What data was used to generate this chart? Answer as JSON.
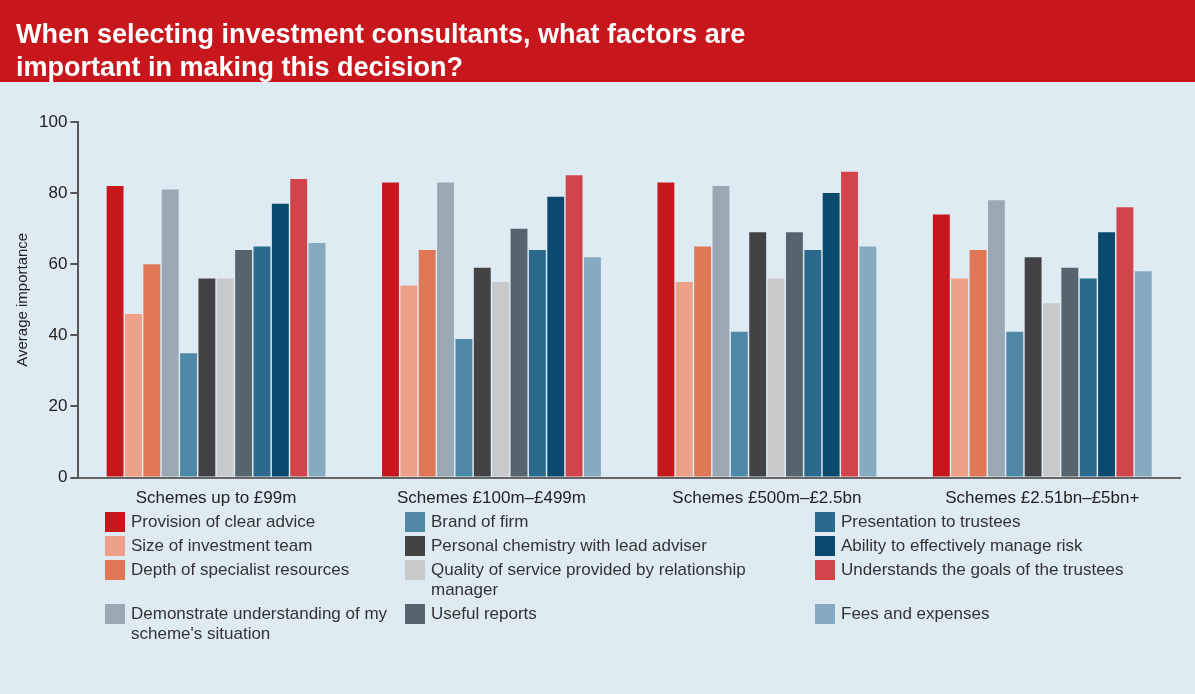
{
  "chart_data": {
    "type": "bar",
    "title": "When selecting investment consultants, what factors are important in making this decision?",
    "ylabel": "Average importance",
    "categories": [
      "Schemes up to £99m",
      "Schemes £100m–£499m",
      "Schemes £500m–£2.5bn",
      "Schemes £2.51bn–£5bn+"
    ],
    "ylim": [
      0,
      100
    ],
    "yticks": [
      0,
      20,
      40,
      60,
      80,
      100
    ],
    "grid": false,
    "legend": "bottom",
    "series": [
      {
        "name": "Provision of clear advice",
        "color": "#c8161d",
        "values": [
          82,
          83,
          83,
          74
        ]
      },
      {
        "name": "Size of investment team",
        "color": "#eea088",
        "values": [
          46,
          54,
          55,
          56
        ]
      },
      {
        "name": "Depth of specialist resources",
        "color": "#e07757",
        "values": [
          60,
          64,
          65,
          64
        ]
      },
      {
        "name": "Demonstrate understanding of my scheme's situation",
        "color": "#9aa8b4",
        "values": [
          81,
          83,
          82,
          78
        ]
      },
      {
        "name": "Brand of firm",
        "color": "#5089a8",
        "values": [
          35,
          39,
          41,
          41
        ]
      },
      {
        "name": "Personal chemistry with lead adviser",
        "color": "#434345",
        "values": [
          56,
          59,
          69,
          62
        ]
      },
      {
        "name": "Quality of service provided by relationship manager",
        "color": "#c8c9cb",
        "values": [
          56,
          55,
          56,
          49
        ]
      },
      {
        "name": "Useful reports",
        "color": "#56646e",
        "values": [
          64,
          70,
          69,
          59
        ]
      },
      {
        "name": "Presentation to trustees",
        "color": "#2b6a8c",
        "values": [
          65,
          64,
          64,
          56
        ]
      },
      {
        "name": "Ability to effectively manage risk",
        "color": "#0b4a6e",
        "values": [
          77,
          79,
          80,
          69
        ]
      },
      {
        "name": "Understands the goals of the trustees",
        "color": "#d2434a",
        "values": [
          84,
          85,
          86,
          76
        ]
      },
      {
        "name": "Fees and expenses",
        "color": "#86aabf",
        "values": [
          66,
          62,
          65,
          58
        ]
      }
    ]
  }
}
